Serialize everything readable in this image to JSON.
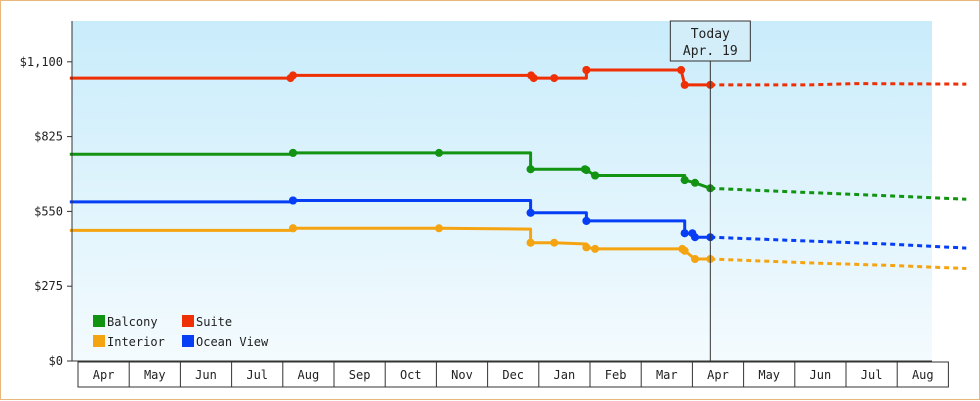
{
  "chart_data": {
    "type": "line",
    "title": "",
    "xlabel": "",
    "ylabel": "",
    "y_ticks": [
      0,
      275,
      550,
      825,
      1100
    ],
    "y_tick_labels": [
      "$0",
      "$275",
      "$550",
      "$825",
      "$1,100"
    ],
    "ylim": [
      0,
      1250
    ],
    "x_axis_months": [
      "Apr",
      "May",
      "Jun",
      "Jul",
      "Aug",
      "Sep",
      "Oct",
      "Nov",
      "Dec",
      "Jan",
      "Feb",
      "Mar",
      "Apr",
      "May",
      "Jun",
      "Jul",
      "Aug"
    ],
    "grid": false,
    "background": "light blue gradient",
    "today_marker": {
      "line1": "Today",
      "line2": "Apr. 19",
      "month_pos": 12.35
    },
    "legend_position": "bottom-left",
    "series": [
      {
        "name": "Balcony",
        "color": "#129312",
        "points": [
          [
            -0.16,
            760
          ],
          [
            4.2,
            760
          ],
          [
            4.2,
            765
          ],
          [
            7.05,
            765
          ],
          [
            7.05,
            765
          ],
          [
            8.84,
            765
          ],
          [
            8.84,
            755
          ],
          [
            8.84,
            705
          ],
          [
            9.9,
            705
          ],
          [
            9.93,
            702
          ],
          [
            10.1,
            682
          ],
          [
            11.85,
            682
          ],
          [
            11.85,
            665
          ],
          [
            12.05,
            655
          ],
          [
            12.35,
            635
          ]
        ],
        "markers_x": [
          4.2,
          4.2,
          7.05,
          8.84,
          8.84,
          9.9,
          9.93,
          10.1,
          10.1,
          11.85,
          11.85,
          12.05,
          12.35
        ],
        "forecast": [
          [
            12.35,
            635
          ],
          [
            14.2,
            620
          ],
          [
            15.5,
            610
          ],
          [
            17.35,
            595
          ]
        ]
      },
      {
        "name": "Suite",
        "color": "#ef2f04",
        "points": [
          [
            -0.16,
            1040
          ],
          [
            4.15,
            1040
          ],
          [
            4.2,
            1050
          ],
          [
            8.85,
            1050
          ],
          [
            8.9,
            1040
          ],
          [
            9.3,
            1040
          ],
          [
            9.93,
            1040
          ],
          [
            9.93,
            1070
          ],
          [
            11.78,
            1070
          ],
          [
            11.85,
            1015
          ],
          [
            12.35,
            1015
          ]
        ],
        "markers_x": [
          4.15,
          4.2,
          8.85,
          8.9,
          9.3,
          9.93,
          9.93,
          11.78,
          11.85,
          12.35
        ],
        "forecast": [
          [
            12.35,
            1015
          ],
          [
            14.3,
            1015
          ],
          [
            15.2,
            1020
          ],
          [
            17.35,
            1018
          ]
        ]
      },
      {
        "name": "Interior",
        "color": "#f5a411",
        "points": [
          [
            -0.16,
            480
          ],
          [
            4.2,
            480
          ],
          [
            4.2,
            488
          ],
          [
            7.05,
            488
          ],
          [
            8.84,
            485
          ],
          [
            8.84,
            435
          ],
          [
            9.3,
            435
          ],
          [
            9.93,
            430
          ],
          [
            9.93,
            418
          ],
          [
            10.1,
            412
          ],
          [
            11.8,
            412
          ],
          [
            11.85,
            405
          ],
          [
            12.05,
            375
          ],
          [
            12.35,
            375
          ]
        ],
        "markers_x": [
          4.2,
          4.2,
          7.05,
          8.84,
          8.84,
          9.3,
          9.93,
          9.93,
          10.1,
          11.8,
          11.85,
          12.05,
          12.35
        ],
        "forecast": [
          [
            12.35,
            375
          ],
          [
            14.4,
            360
          ],
          [
            15.8,
            352
          ],
          [
            17.35,
            340
          ]
        ]
      },
      {
        "name": "Ocean View",
        "color": "#063ef6",
        "points": [
          [
            -0.16,
            585
          ],
          [
            4.2,
            585
          ],
          [
            4.2,
            590
          ],
          [
            8.84,
            590
          ],
          [
            8.84,
            545
          ],
          [
            9.93,
            545
          ],
          [
            9.93,
            515
          ],
          [
            11.85,
            515
          ],
          [
            11.85,
            470
          ],
          [
            12.0,
            470
          ],
          [
            12.05,
            455
          ],
          [
            12.35,
            455
          ]
        ],
        "markers_x": [
          4.2,
          4.2,
          8.84,
          8.84,
          9.93,
          9.93,
          11.85,
          11.85,
          12.0,
          12.05,
          12.35
        ],
        "forecast": [
          [
            12.35,
            455
          ],
          [
            14.4,
            440
          ],
          [
            15.8,
            430
          ],
          [
            17.35,
            415
          ]
        ]
      }
    ],
    "legend": [
      {
        "label": "Balcony",
        "color": "#129312"
      },
      {
        "label": "Suite",
        "color": "#ef2f04"
      },
      {
        "label": "Interior",
        "color": "#f5a411"
      },
      {
        "label": "Ocean View",
        "color": "#063ef6"
      }
    ]
  }
}
